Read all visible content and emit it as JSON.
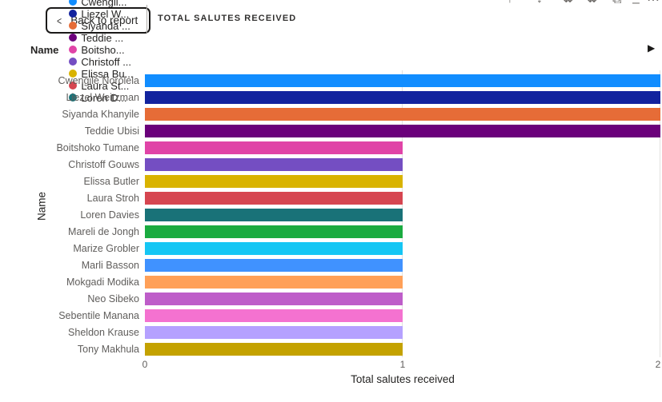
{
  "header": {
    "back_button": {
      "label": "Back to report",
      "chevron": "<"
    },
    "title": "TOTAL SALUTES RECEIVED",
    "toolbar_icons": [
      {
        "name": "drill-up-icon",
        "glyph": "↑"
      },
      {
        "name": "drill-down-icon",
        "glyph": "↓"
      },
      {
        "name": "go-to-next-level-icon",
        "glyph": "⇊"
      },
      {
        "name": "expand-all-icon",
        "glyph": "⇊"
      },
      {
        "name": "copy-icon",
        "glyph": "⧉"
      },
      {
        "name": "minimize-icon",
        "glyph": "–"
      },
      {
        "name": "more-options-icon",
        "glyph": "⋯"
      }
    ]
  },
  "legend": {
    "title": "Name",
    "items": [
      {
        "label": "Cwengil...",
        "color": "#118DFF"
      },
      {
        "label": "Liezel W...",
        "color": "#12239E"
      },
      {
        "label": "Siyanda ...",
        "color": "#E66C37"
      },
      {
        "label": "Teddie ...",
        "color": "#6B007B"
      },
      {
        "label": "Boitsho...",
        "color": "#E044A7"
      },
      {
        "label": "Christoff ...",
        "color": "#744EC2"
      },
      {
        "label": "Elissa Bu...",
        "color": "#D9B300"
      },
      {
        "label": "Laura St...",
        "color": "#D64550"
      },
      {
        "label": "Loren D...",
        "color": "#197278"
      }
    ],
    "next_arrow": "▶"
  },
  "chart_data": {
    "type": "bar",
    "orientation": "horizontal",
    "title": "TOTAL SALUTES RECEIVED",
    "categories": [
      "Cwengile Norolela",
      "Liezel Weitzman",
      "Siyanda Khanyile",
      "Teddie Ubisi",
      "Boitshoko Tumane",
      "Christoff Gouws",
      "Elissa Butler",
      "Laura Stroh",
      "Loren Davies",
      "Mareli de Jongh",
      "Marize Grobler",
      "Marli Basson",
      "Mokgadi Modika",
      "Neo Sibeko",
      "Sebentile Manana",
      "Sheldon Krause",
      "Tony Makhula"
    ],
    "values": [
      2,
      2,
      2,
      2,
      1,
      1,
      1,
      1,
      1,
      1,
      1,
      1,
      1,
      1,
      1,
      1,
      1
    ],
    "colors": [
      "#118DFF",
      "#12239E",
      "#E66C37",
      "#6B007B",
      "#E044A7",
      "#744EC2",
      "#D9B300",
      "#D64550",
      "#197278",
      "#1AAB40",
      "#15C6F4",
      "#4092FF",
      "#FFA058",
      "#BE5DC9",
      "#F472D0",
      "#B5A1FF",
      "#C4A200"
    ],
    "xlabel": "Total salutes received",
    "ylabel": "Name",
    "xlim": [
      0,
      2
    ],
    "x_ticks": [
      "0",
      "1",
      "2"
    ],
    "grid": true,
    "legend_position": "top"
  }
}
